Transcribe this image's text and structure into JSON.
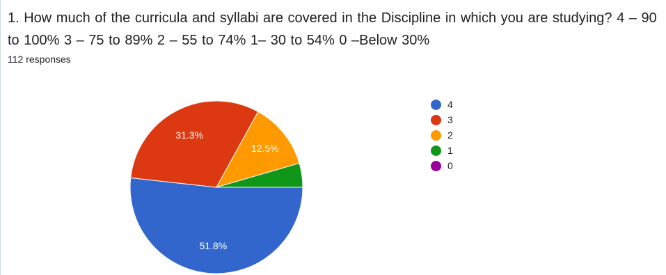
{
  "question": {
    "title": "1. How much of the curricula and syllabi are covered in the Discipline in which you are studying?  4 – 90 to 100%  3 – 75 to 89%  2 – 55 to 74%  1– 30 to 54%  0 –Below 30%",
    "responses": "112 responses"
  },
  "chart_data": {
    "type": "pie",
    "categories": [
      "4",
      "3",
      "2",
      "1",
      "0"
    ],
    "values": [
      51.8,
      31.3,
      12.5,
      4.5,
      0
    ],
    "data_labels": [
      "51.8%",
      "31.3%",
      "12.5%",
      "",
      ""
    ],
    "colors": [
      "#3366cc",
      "#dc3912",
      "#ff9900",
      "#109618",
      "#990099"
    ],
    "legend_position": "right"
  }
}
